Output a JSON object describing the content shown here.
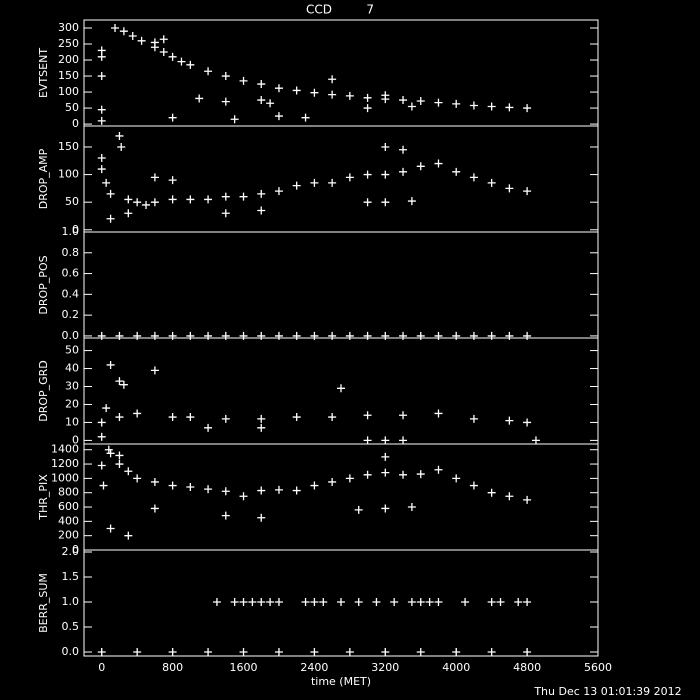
{
  "header": {
    "title": "CCD         7"
  },
  "footer": {
    "timestamp": "Thu Dec 13 01:01:39 2012"
  },
  "chart_data": [
    {
      "type": "scatter",
      "ylabel": "EVTSENT",
      "xlim": [
        -200,
        5600
      ],
      "ylim": [
        -6,
        325
      ],
      "yticks": [
        0,
        50,
        100,
        150,
        200,
        250,
        300
      ],
      "x": [
        0,
        0,
        0,
        0,
        0,
        150,
        250,
        350,
        450,
        600,
        700,
        800,
        900,
        1000,
        1200,
        1400,
        1600,
        1800,
        2000,
        2200,
        2400,
        2600,
        2800,
        3000,
        3200,
        3400,
        3600,
        3800,
        4000,
        4200,
        4400,
        4600,
        4800,
        1100,
        1400,
        1800,
        1900,
        2300,
        2000,
        800,
        1500,
        3200,
        3000,
        3500,
        2600,
        600,
        700
      ],
      "values": [
        230,
        210,
        150,
        45,
        10,
        300,
        290,
        275,
        260,
        240,
        225,
        210,
        195,
        185,
        165,
        150,
        135,
        125,
        112,
        105,
        98,
        92,
        88,
        82,
        78,
        75,
        72,
        67,
        63,
        58,
        55,
        52,
        50,
        80,
        70,
        75,
        65,
        20,
        25,
        20,
        15,
        90,
        50,
        55,
        140,
        255,
        265
      ]
    },
    {
      "type": "scatter",
      "ylabel": "DROP_AMP",
      "xlim": [
        -200,
        5600
      ],
      "ylim": [
        -4,
        188
      ],
      "yticks": [
        0,
        50,
        100,
        150
      ],
      "x": [
        0,
        0,
        50,
        100,
        200,
        220,
        300,
        400,
        500,
        600,
        800,
        1000,
        1200,
        1400,
        1600,
        1800,
        2000,
        2200,
        2400,
        2600,
        2800,
        3000,
        3200,
        3400,
        3600,
        3800,
        4000,
        4200,
        4400,
        4600,
        4800,
        3000,
        3200,
        3500,
        1400,
        1800,
        600,
        800,
        3200,
        3400,
        100,
        300
      ],
      "values": [
        130,
        110,
        85,
        65,
        170,
        150,
        55,
        50,
        45,
        50,
        55,
        55,
        55,
        60,
        60,
        65,
        70,
        80,
        85,
        85,
        95,
        100,
        100,
        105,
        115,
        120,
        105,
        95,
        85,
        75,
        70,
        50,
        50,
        52,
        30,
        35,
        95,
        90,
        150,
        145,
        20,
        30
      ]
    },
    {
      "type": "scatter",
      "ylabel": "DROP_POS",
      "xlim": [
        -200,
        5600
      ],
      "ylim": [
        -0.02,
        1.0
      ],
      "yticks": [
        {
          "value": 0,
          "label": "0.0"
        },
        0.2,
        0.4,
        0.6,
        0.8,
        {
          "value": 1,
          "label": "1.0"
        }
      ],
      "x": [
        0,
        200,
        400,
        600,
        800,
        1000,
        1200,
        1400,
        1600,
        1800,
        2000,
        2200,
        2400,
        2600,
        2800,
        3000,
        3200,
        3400,
        3600,
        3800,
        4000,
        4200,
        4400,
        4600,
        4800
      ],
      "values": [
        0,
        0,
        0,
        0,
        0,
        0,
        0,
        0,
        0,
        0,
        0,
        0,
        0,
        0,
        0,
        0,
        0,
        0,
        0,
        0,
        0,
        0,
        0,
        0,
        0
      ]
    },
    {
      "type": "scatter",
      "ylabel": "DROP_GRD",
      "xlim": [
        -200,
        5600
      ],
      "ylim": [
        -2,
        57
      ],
      "yticks": [
        0,
        10,
        20,
        30,
        40,
        50
      ],
      "x": [
        0,
        50,
        100,
        200,
        250,
        400,
        600,
        800,
        1000,
        1400,
        1800,
        2200,
        2600,
        3000,
        3400,
        3800,
        4200,
        4600,
        4800,
        4900,
        3000,
        3200,
        3400,
        2700,
        200,
        1200,
        1800,
        0
      ],
      "values": [
        10,
        18,
        42,
        33,
        31,
        15,
        39,
        13,
        13,
        12,
        12,
        13,
        13,
        14,
        14,
        15,
        12,
        11,
        10,
        0,
        0,
        0,
        0,
        29,
        13,
        7,
        7,
        2
      ]
    },
    {
      "type": "scatter",
      "ylabel": "THR_PIX",
      "xlim": [
        -200,
        5600
      ],
      "ylim": [
        0,
        1480
      ],
      "yticks": [
        0,
        200,
        400,
        600,
        800,
        1000,
        1200,
        1400
      ],
      "x": [
        0,
        20,
        80,
        100,
        200,
        300,
        400,
        600,
        800,
        1000,
        1200,
        1400,
        1600,
        1800,
        2000,
        2200,
        2400,
        2600,
        2800,
        3000,
        3200,
        3400,
        3600,
        3800,
        4000,
        4200,
        4400,
        4600,
        4800,
        2900,
        3200,
        3500,
        100,
        300,
        600,
        1400,
        1800,
        200,
        3200
      ],
      "values": [
        1180,
        900,
        1400,
        1350,
        1200,
        1100,
        1000,
        950,
        900,
        880,
        850,
        820,
        750,
        830,
        840,
        830,
        900,
        950,
        1000,
        1050,
        1080,
        1050,
        1060,
        1120,
        1000,
        900,
        800,
        750,
        700,
        560,
        580,
        600,
        300,
        200,
        580,
        480,
        450,
        1320,
        1300
      ]
    },
    {
      "type": "scatter",
      "ylabel": "BERR_SUM",
      "xlim": [
        -200,
        5600
      ],
      "ylim": [
        -0.08,
        2.04
      ],
      "yticks": [
        {
          "value": 0,
          "label": "0.0"
        },
        0.5,
        {
          "value": 1,
          "label": "1.0"
        },
        1.5,
        {
          "value": 2,
          "label": "2.0"
        }
      ],
      "xlabel": "time (MET)",
      "xticks": [
        0,
        800,
        1600,
        2400,
        3200,
        4000,
        4800,
        5600
      ],
      "x": [
        1300,
        1500,
        1600,
        1700,
        1800,
        1900,
        2000,
        2300,
        2400,
        2500,
        2700,
        2900,
        3100,
        3300,
        3500,
        3600,
        3700,
        3800,
        4100,
        4400,
        4500,
        4700,
        4800,
        0,
        400,
        800,
        1200,
        1600,
        2000,
        2400,
        2800,
        3200,
        3600,
        4000,
        4400,
        4800
      ],
      "values": [
        1,
        1,
        1,
        1,
        1,
        1,
        1,
        1,
        1,
        1,
        1,
        1,
        1,
        1,
        1,
        1,
        1,
        1,
        1,
        1,
        1,
        1,
        1,
        0,
        0,
        0,
        0,
        0,
        0,
        0,
        0,
        0,
        0,
        0,
        0,
        0
      ]
    }
  ]
}
